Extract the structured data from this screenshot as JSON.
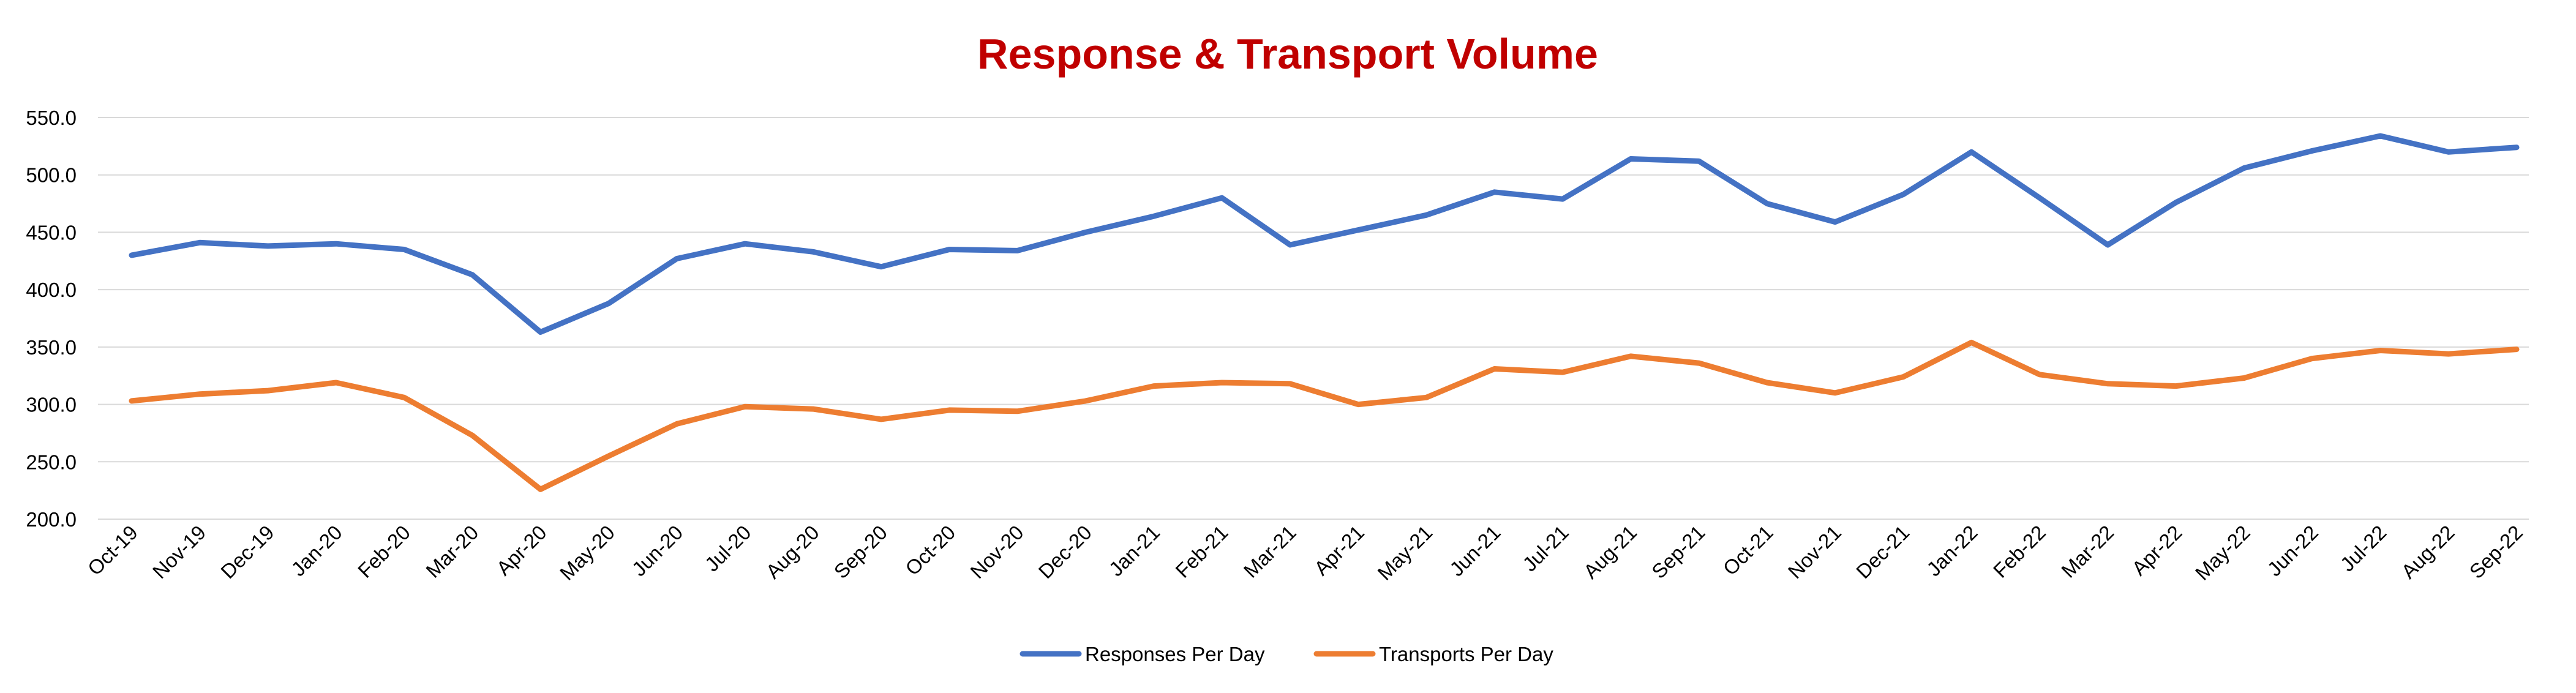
{
  "chart_data": {
    "type": "line",
    "title": "Response & Transport Volume",
    "title_color": "#C00000",
    "categories": [
      "Oct-19",
      "Nov-19",
      "Dec-19",
      "Jan-20",
      "Feb-20",
      "Mar-20",
      "Apr-20",
      "May-20",
      "Jun-20",
      "Jul-20",
      "Aug-20",
      "Sep-20",
      "Oct-20",
      "Nov-20",
      "Dec-20",
      "Jan-21",
      "Feb-21",
      "Mar-21",
      "Apr-21",
      "May-21",
      "Jun-21",
      "Jul-21",
      "Aug-21",
      "Sep-21",
      "Oct-21",
      "Nov-21",
      "Dec-21",
      "Jan-22",
      "Feb-22",
      "Mar-22",
      "Apr-22",
      "May-22",
      "Jun-22",
      "Jul-22",
      "Aug-22",
      "Sep-22"
    ],
    "series": [
      {
        "name": "Responses Per Day",
        "color": "#4472C4",
        "values": [
          430,
          441,
          438,
          440,
          435,
          413,
          363,
          388,
          427,
          440,
          433,
          420,
          435,
          434,
          450,
          464,
          480,
          439,
          452,
          465,
          485,
          479,
          514,
          512,
          475,
          459,
          483,
          520,
          480,
          439,
          476,
          506,
          521,
          534,
          520,
          524
        ]
      },
      {
        "name": "Transports Per Day",
        "color": "#ED7D31",
        "values": [
          303,
          309,
          312,
          319,
          306,
          273,
          226,
          255,
          283,
          298,
          296,
          287,
          295,
          294,
          303,
          316,
          319,
          318,
          300,
          306,
          331,
          328,
          342,
          336,
          319,
          310,
          324,
          354,
          326,
          318,
          316,
          323,
          340,
          347,
          344,
          348
        ]
      }
    ],
    "ylim": [
      200,
      550
    ],
    "yticks": [
      "200.0",
      "250.0",
      "300.0",
      "350.0",
      "400.0",
      "450.0",
      "500.0",
      "550.0"
    ],
    "grid": true,
    "legend_position": "bottom"
  }
}
